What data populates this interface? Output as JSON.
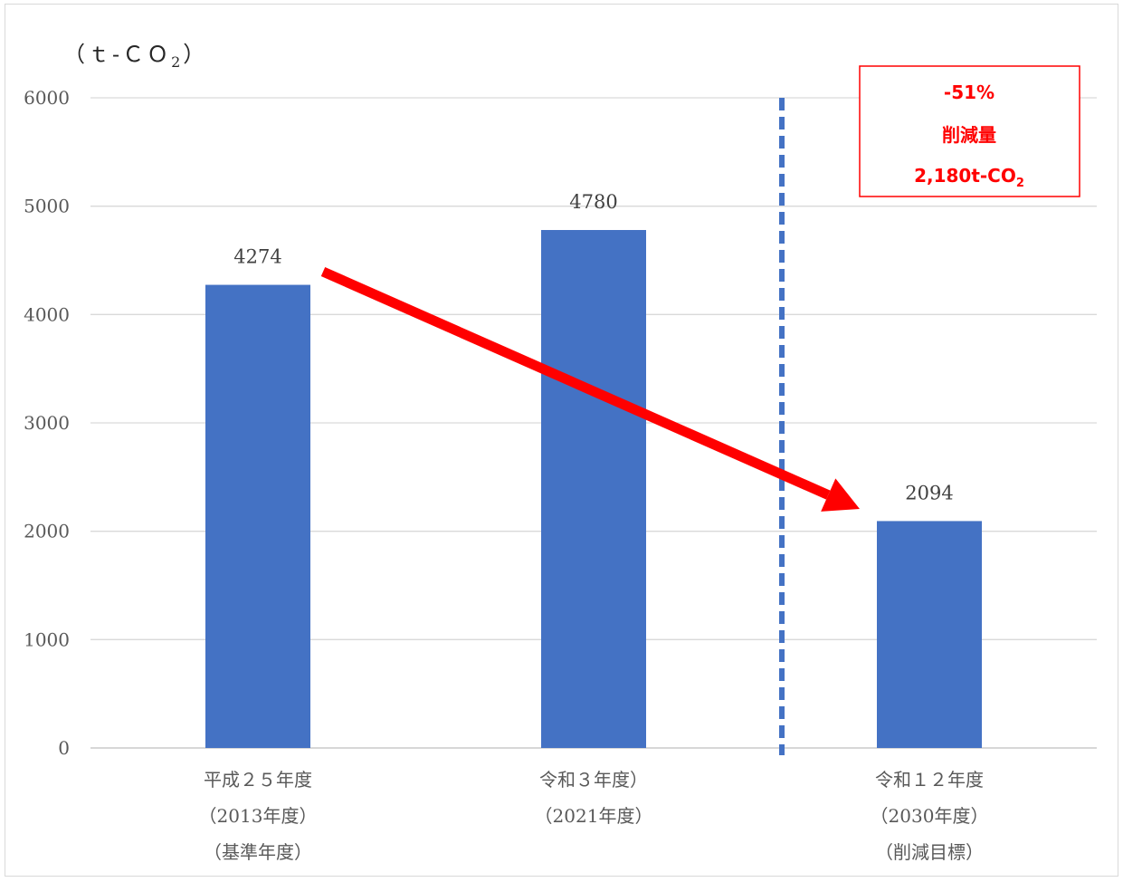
{
  "chart_data": {
    "type": "bar",
    "ylabel": "（t-CO₂）",
    "ylabel_base": "（ｔ‐ＣＯ",
    "ylabel_sub": "2",
    "ylabel_close": "）",
    "ylim": [
      0,
      6000
    ],
    "yticks": [
      0,
      1000,
      2000,
      3000,
      4000,
      5000,
      6000
    ],
    "grid": true,
    "categories": [
      [
        "平成２５年度",
        "（2013年度）",
        "（基準年度）"
      ],
      [
        "令和３年度）",
        "（2021年度）"
      ],
      [
        "令和１２年度",
        "（2030年度）",
        "（削減目標）"
      ]
    ],
    "values": [
      4274,
      4780,
      2094
    ],
    "data_labels": [
      "4274",
      "4780",
      "2094"
    ],
    "bar_color": "#4472c4",
    "annotation": {
      "line1": "-51%",
      "line2": "削減量",
      "line3_base": "2,180t-CO",
      "line3_sub": "2",
      "color": "#ff0000"
    },
    "arrow_color": "#ff0000",
    "divider_color": "#4472c4"
  }
}
